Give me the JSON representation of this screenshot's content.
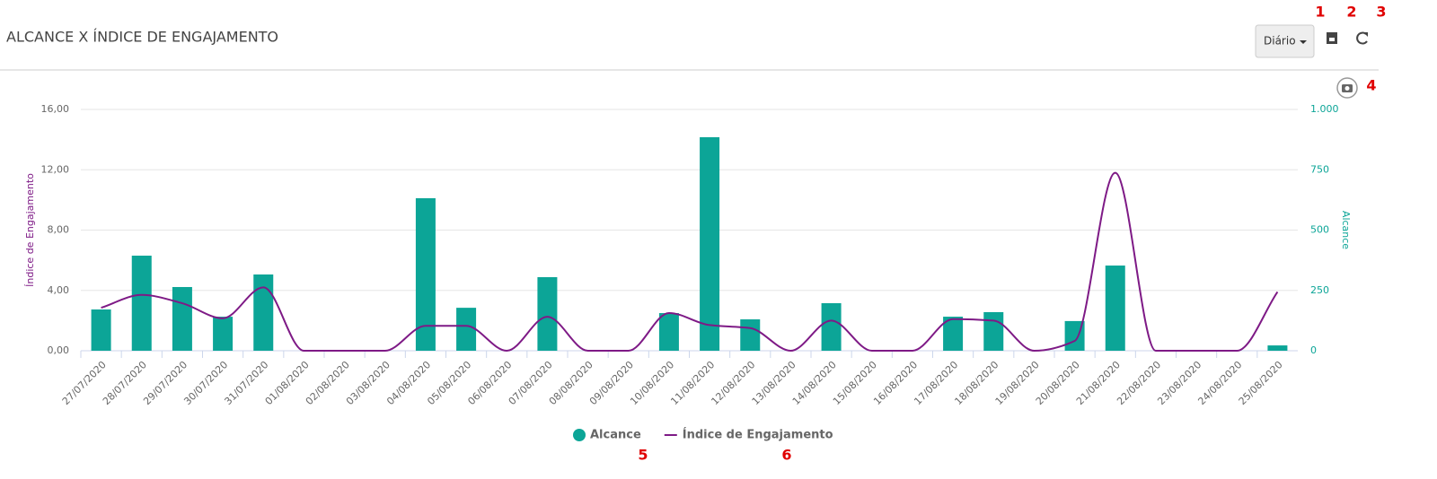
{
  "header": {
    "period": "Diário"
  },
  "markers": [
    "1",
    "2",
    "3",
    "4",
    "5",
    "6"
  ],
  "chart_data": {
    "type": "bar_line",
    "title": "ALCANCE X ÍNDICE DE ENGAJAMENTO",
    "y_label": "Índice de Engajamento",
    "y2_label": "Alcance",
    "categories": [
      "27/07/2020",
      "28/07/2020",
      "29/07/2020",
      "30/07/2020",
      "31/07/2020",
      "01/08/2020",
      "02/08/2020",
      "03/08/2020",
      "04/08/2020",
      "05/08/2020",
      "06/08/2020",
      "07/08/2020",
      "08/08/2020",
      "09/08/2020",
      "10/08/2020",
      "11/08/2020",
      "12/08/2020",
      "13/08/2020",
      "14/08/2020",
      "15/08/2020",
      "16/08/2020",
      "17/08/2020",
      "18/08/2020",
      "19/08/2020",
      "20/08/2020",
      "21/08/2020",
      "22/08/2020",
      "23/08/2020",
      "24/08/2020",
      "25/08/2020"
    ],
    "series": [
      {
        "name": "Alcance",
        "type": "bar",
        "axis": "y2",
        "color": "#0ca597",
        "values": [
          171,
          394,
          264,
          141,
          316,
          0,
          0,
          0,
          632,
          178,
          0,
          305,
          0,
          0,
          156,
          885,
          130,
          0,
          197,
          0,
          0,
          141,
          160,
          0,
          123,
          353,
          0,
          0,
          0,
          22
        ]
      },
      {
        "name": "Índice de Engajamento",
        "type": "line",
        "axis": "y",
        "color": "#7e1a86",
        "values": [
          2.85,
          3.7,
          3.15,
          2.15,
          4.2,
          0,
          0,
          0,
          1.65,
          1.65,
          0,
          2.25,
          0,
          0,
          2.5,
          1.7,
          1.5,
          0,
          2.0,
          0,
          0,
          2.1,
          2.0,
          0,
          0.65,
          11.8,
          0,
          0,
          0,
          3.9
        ]
      }
    ],
    "ylim": [
      0,
      16
    ],
    "yticks": [
      {
        "value": 0,
        "label": "0,00"
      },
      {
        "value": 4,
        "label": "4,00"
      },
      {
        "value": 8,
        "label": "8,00"
      },
      {
        "value": 12,
        "label": "12,00"
      },
      {
        "value": 16,
        "label": "16,00"
      }
    ],
    "y2lim": [
      0,
      1000
    ],
    "y2ticks": [
      0,
      250,
      500,
      750,
      {
        "value": 1000,
        "label": "1.000"
      }
    ],
    "grid": true,
    "legend": "bottom"
  }
}
